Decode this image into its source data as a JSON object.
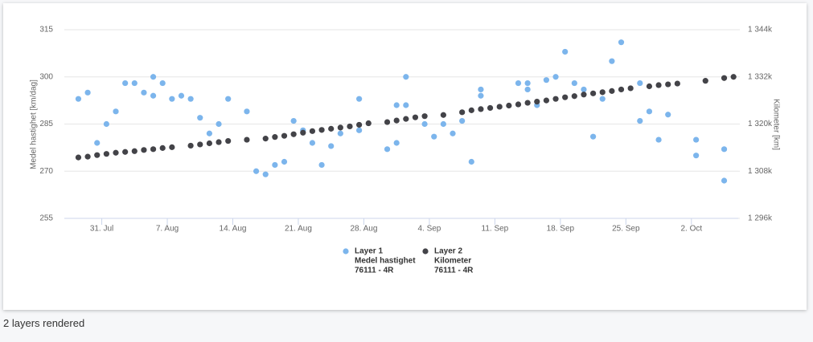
{
  "chart_data": {
    "type": "scatter",
    "y_label": "Medel hastighet [km/dag]",
    "y2_label": "Kilometer [km]",
    "xlim": [
      "07-27",
      "10-07"
    ],
    "xticks": [
      {
        "value": "07-31",
        "label": "31. Jul"
      },
      {
        "value": "08-07",
        "label": "7. Aug"
      },
      {
        "value": "08-14",
        "label": "14. Aug"
      },
      {
        "value": "08-21",
        "label": "21. Aug"
      },
      {
        "value": "08-28",
        "label": "28. Aug"
      },
      {
        "value": "09-04",
        "label": "4. Sep"
      },
      {
        "value": "09-11",
        "label": "11. Sep"
      },
      {
        "value": "09-18",
        "label": "18. Sep"
      },
      {
        "value": "09-25",
        "label": "25. Sep"
      },
      {
        "value": "10-02",
        "label": "2. Oct"
      }
    ],
    "ylim": [
      255,
      315
    ],
    "yticks": [
      255,
      270,
      285,
      300,
      315
    ],
    "y2lim": [
      1296000,
      1344000
    ],
    "y2ticks": [
      {
        "value": 1296000,
        "label": "1 296k"
      },
      {
        "value": 1308000,
        "label": "1 308k"
      },
      {
        "value": 1320000,
        "label": "1 320k"
      },
      {
        "value": 1332000,
        "label": "1 332k"
      },
      {
        "value": 1344000,
        "label": "1 344k"
      }
    ],
    "grid": true,
    "legend": "bottom",
    "series": [
      {
        "name": "Layer 1",
        "legend_lines": [
          "Medel hastighet",
          "76111 - 4R"
        ],
        "color": "#7cb5ec",
        "x": [
          "07-28",
          "07-29",
          "07-30",
          "07-31",
          "08-01",
          "08-02",
          "08-03",
          "08-04",
          "08-05",
          "08-05",
          "08-06",
          "08-07",
          "08-08",
          "08-09",
          "08-10",
          "08-11",
          "08-12",
          "08-13",
          "08-15",
          "08-16",
          "08-17",
          "08-18",
          "08-19",
          "08-20",
          "08-21",
          "08-22",
          "08-23",
          "08-24",
          "08-25",
          "08-27",
          "08-27",
          "08-30",
          "08-31",
          "08-31",
          "09-01",
          "09-01",
          "09-03",
          "09-04",
          "09-05",
          "09-06",
          "09-07",
          "09-08",
          "09-09",
          "09-09",
          "09-13",
          "09-14",
          "09-14",
          "09-15",
          "09-16",
          "09-17",
          "09-18",
          "09-19",
          "09-20",
          "09-21",
          "09-22",
          "09-23",
          "09-24",
          "09-26",
          "09-26",
          "09-27",
          "09-28",
          "09-29",
          "10-02",
          "10-02",
          "10-05",
          "10-05"
        ],
        "values": [
          293,
          295,
          279,
          285,
          289,
          298,
          298,
          295,
          294,
          300,
          298,
          293,
          294,
          293,
          287,
          282,
          285,
          293,
          289,
          270,
          269,
          272,
          273,
          286,
          283,
          279,
          272,
          278,
          282,
          293,
          283,
          277,
          279,
          291,
          291,
          300,
          285,
          281,
          285,
          282,
          286,
          273,
          294,
          296,
          298,
          298,
          296,
          291,
          299,
          300,
          308,
          298,
          296,
          281,
          293,
          305,
          311,
          298,
          286,
          289,
          280,
          288,
          280,
          275,
          267,
          277
        ]
      },
      {
        "name": "Layer 2",
        "legend_lines": [
          "Kilometer",
          "76111 - 4R"
        ],
        "color": "#434348",
        "axis": "y2",
        "x": [
          "07-28",
          "07-29",
          "07-30",
          "07-31",
          "08-01",
          "08-02",
          "08-03",
          "08-04",
          "08-05",
          "08-06",
          "08-07",
          "08-09",
          "08-10",
          "08-11",
          "08-12",
          "08-13",
          "08-15",
          "08-17",
          "08-18",
          "08-19",
          "08-20",
          "08-21",
          "08-22",
          "08-23",
          "08-24",
          "08-25",
          "08-26",
          "08-27",
          "08-28",
          "08-30",
          "08-31",
          "09-01",
          "09-02",
          "09-03",
          "09-05",
          "09-07",
          "09-08",
          "09-09",
          "09-10",
          "09-11",
          "09-12",
          "09-13",
          "09-14",
          "09-15",
          "09-16",
          "09-17",
          "09-18",
          "09-19",
          "09-20",
          "09-21",
          "09-22",
          "09-23",
          "09-24",
          "09-25",
          "09-27",
          "09-28",
          "09-29",
          "09-30",
          "10-03",
          "10-05",
          "10-06"
        ],
        "values": [
          1311500,
          1311700,
          1312100,
          1312400,
          1312700,
          1312900,
          1313100,
          1313400,
          1313600,
          1313900,
          1314100,
          1314500,
          1314800,
          1315100,
          1315400,
          1315700,
          1316000,
          1316300,
          1316700,
          1317000,
          1317400,
          1317800,
          1318200,
          1318500,
          1318800,
          1319100,
          1319400,
          1319800,
          1320200,
          1320500,
          1320900,
          1321300,
          1321700,
          1322000,
          1322300,
          1323000,
          1323500,
          1323800,
          1324100,
          1324400,
          1324700,
          1325000,
          1325400,
          1325700,
          1326000,
          1326400,
          1326800,
          1327100,
          1327500,
          1327800,
          1328100,
          1328400,
          1328800,
          1329100,
          1329600,
          1329900,
          1330100,
          1330300,
          1331000,
          1331700,
          1332000
        ]
      }
    ]
  },
  "footer": "2 layers rendered"
}
